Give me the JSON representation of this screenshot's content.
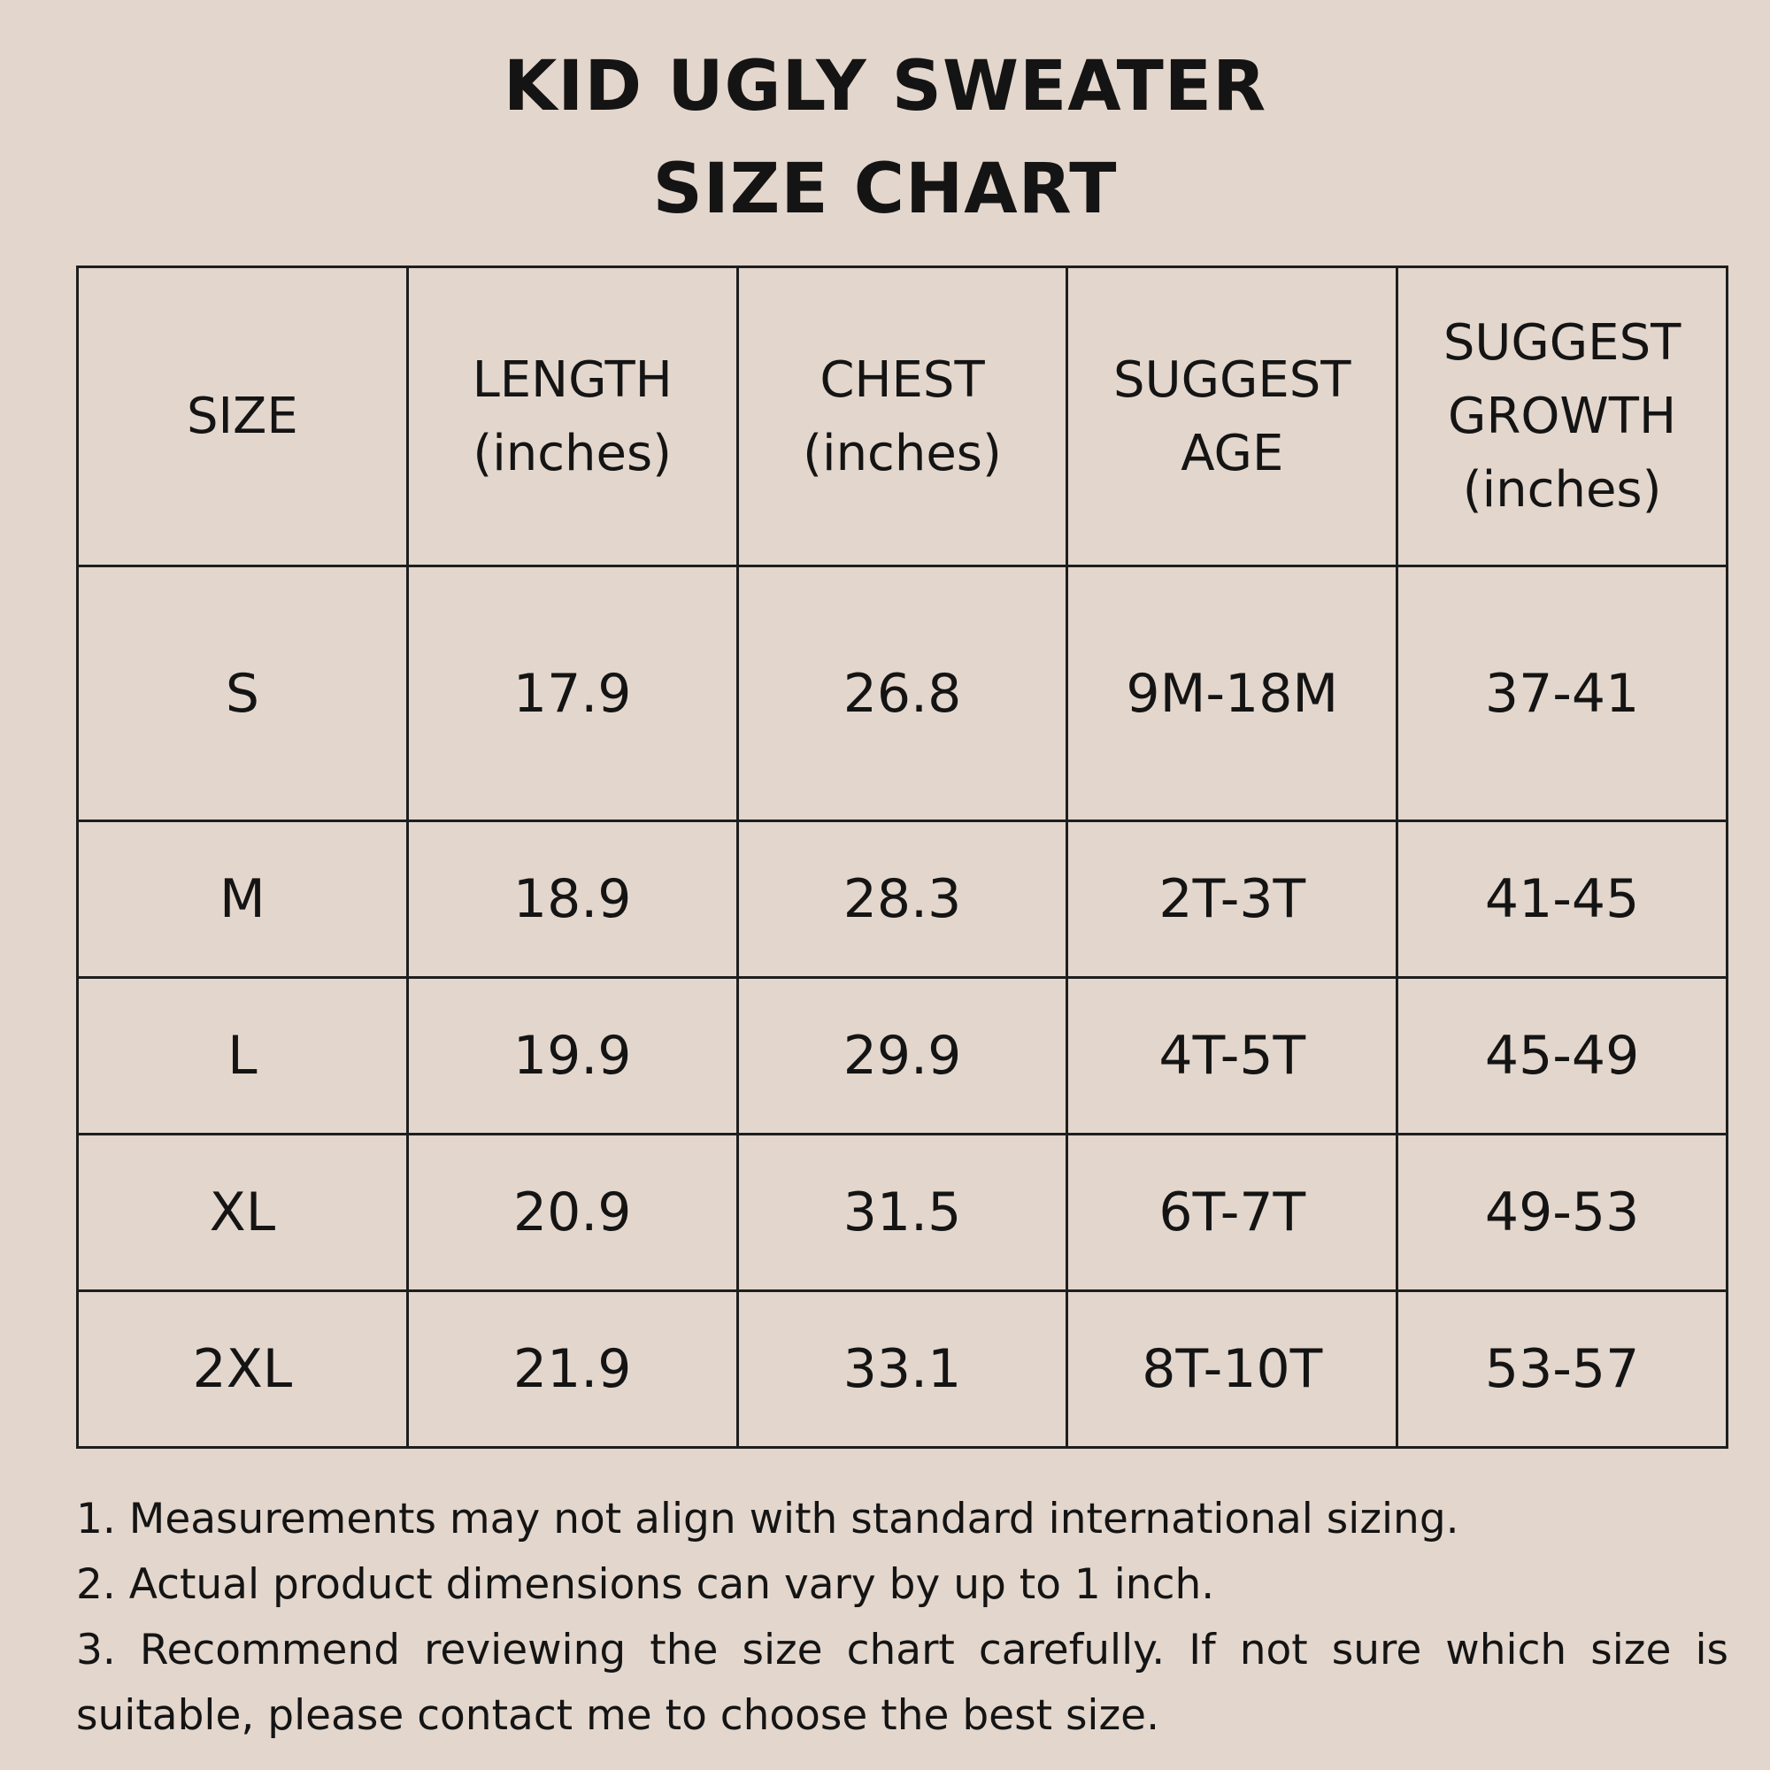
{
  "title": {
    "line1": "KID UGLY SWEATER",
    "line2": "SIZE CHART"
  },
  "table": {
    "headers": [
      [
        "SIZE"
      ],
      [
        "LENGTH",
        "(inches)"
      ],
      [
        "CHEST",
        "(inches)"
      ],
      [
        "SUGGEST",
        "AGE"
      ],
      [
        "SUGGEST",
        "GROWTH",
        "(inches)"
      ]
    ],
    "rows": [
      [
        "S",
        "17.9",
        "26.8",
        "9M-18M",
        "37-41"
      ],
      [
        "M",
        "18.9",
        "28.3",
        "2T-3T",
        "41-45"
      ],
      [
        "L",
        "19.9",
        "29.9",
        "4T-5T",
        "45-49"
      ],
      [
        "XL",
        "20.9",
        "31.5",
        "6T-7T",
        "49-53"
      ],
      [
        "2XL",
        "21.9",
        "33.1",
        "8T-10T",
        "53-57"
      ]
    ]
  },
  "notes": [
    "1. Measurements may not align with standard international sizing.",
    "2. Actual product dimensions can vary by up to 1 inch.",
    "3. Recommend reviewing the size chart carefully. If not sure which size is suitable, please contact me to choose the best size."
  ],
  "colors": {
    "background": "#e3d6cc",
    "text": "#141414",
    "border": "#1e1e1e"
  }
}
